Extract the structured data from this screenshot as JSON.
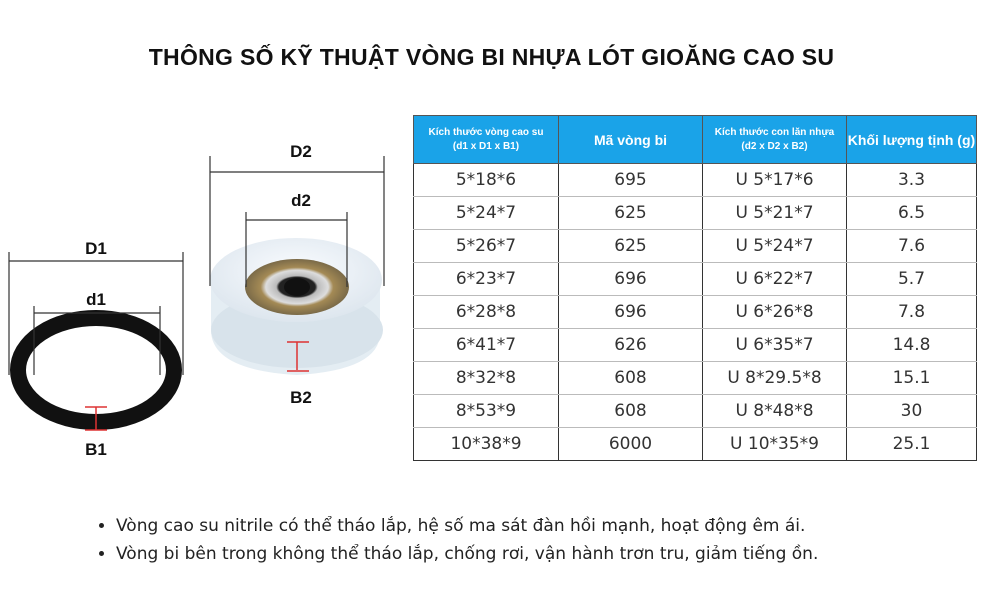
{
  "title": "THÔNG SỐ KỸ THUẬT VÒNG BI NHỰA LÓT GIOĂNG CAO SU",
  "diagram": {
    "labels": {
      "D1": "D1",
      "d1": "d1",
      "B1": "B1",
      "D2": "D2",
      "d2": "d2",
      "B2": "B2"
    }
  },
  "table": {
    "headers": [
      {
        "line1": "Kích thước vòng cao su",
        "line2": "(d1 x D1 x B1)"
      },
      {
        "line1": "Mã vòng bi",
        "line2": ""
      },
      {
        "line1": "Kích thước con lăn nhựa",
        "line2": "(d2 x D2 x B2)"
      },
      {
        "line1": "Khối lượng tịnh (g)",
        "line2": ""
      }
    ],
    "header_color": "#1aa3e8",
    "rows": [
      [
        "5*18*6",
        "695",
        "U 5*17*6",
        "3.3"
      ],
      [
        "5*24*7",
        "625",
        "U 5*21*7",
        "6.5"
      ],
      [
        "5*26*7",
        "625",
        "U 5*24*7",
        "7.6"
      ],
      [
        "6*23*7",
        "696",
        "U 6*22*7",
        "5.7"
      ],
      [
        "6*28*8",
        "696",
        "U 6*26*8",
        "7.8"
      ],
      [
        "6*41*7",
        "626",
        "U 6*35*7",
        "14.8"
      ],
      [
        "8*32*8",
        "608",
        "U 8*29.5*8",
        "15.1"
      ],
      [
        "8*53*9",
        "608",
        "U 8*48*8",
        "30"
      ],
      [
        "10*38*9",
        "6000",
        "U 10*35*9",
        "25.1"
      ]
    ]
  },
  "bullets": [
    "Vòng cao su nitrile có thể tháo lắp, hệ số ma sát đàn hồi mạnh, hoạt động êm ái.",
    "Vòng bi bên trong không thể tháo lắp, chống rơi, vận hành trơn tru, giảm tiếng ồn."
  ]
}
